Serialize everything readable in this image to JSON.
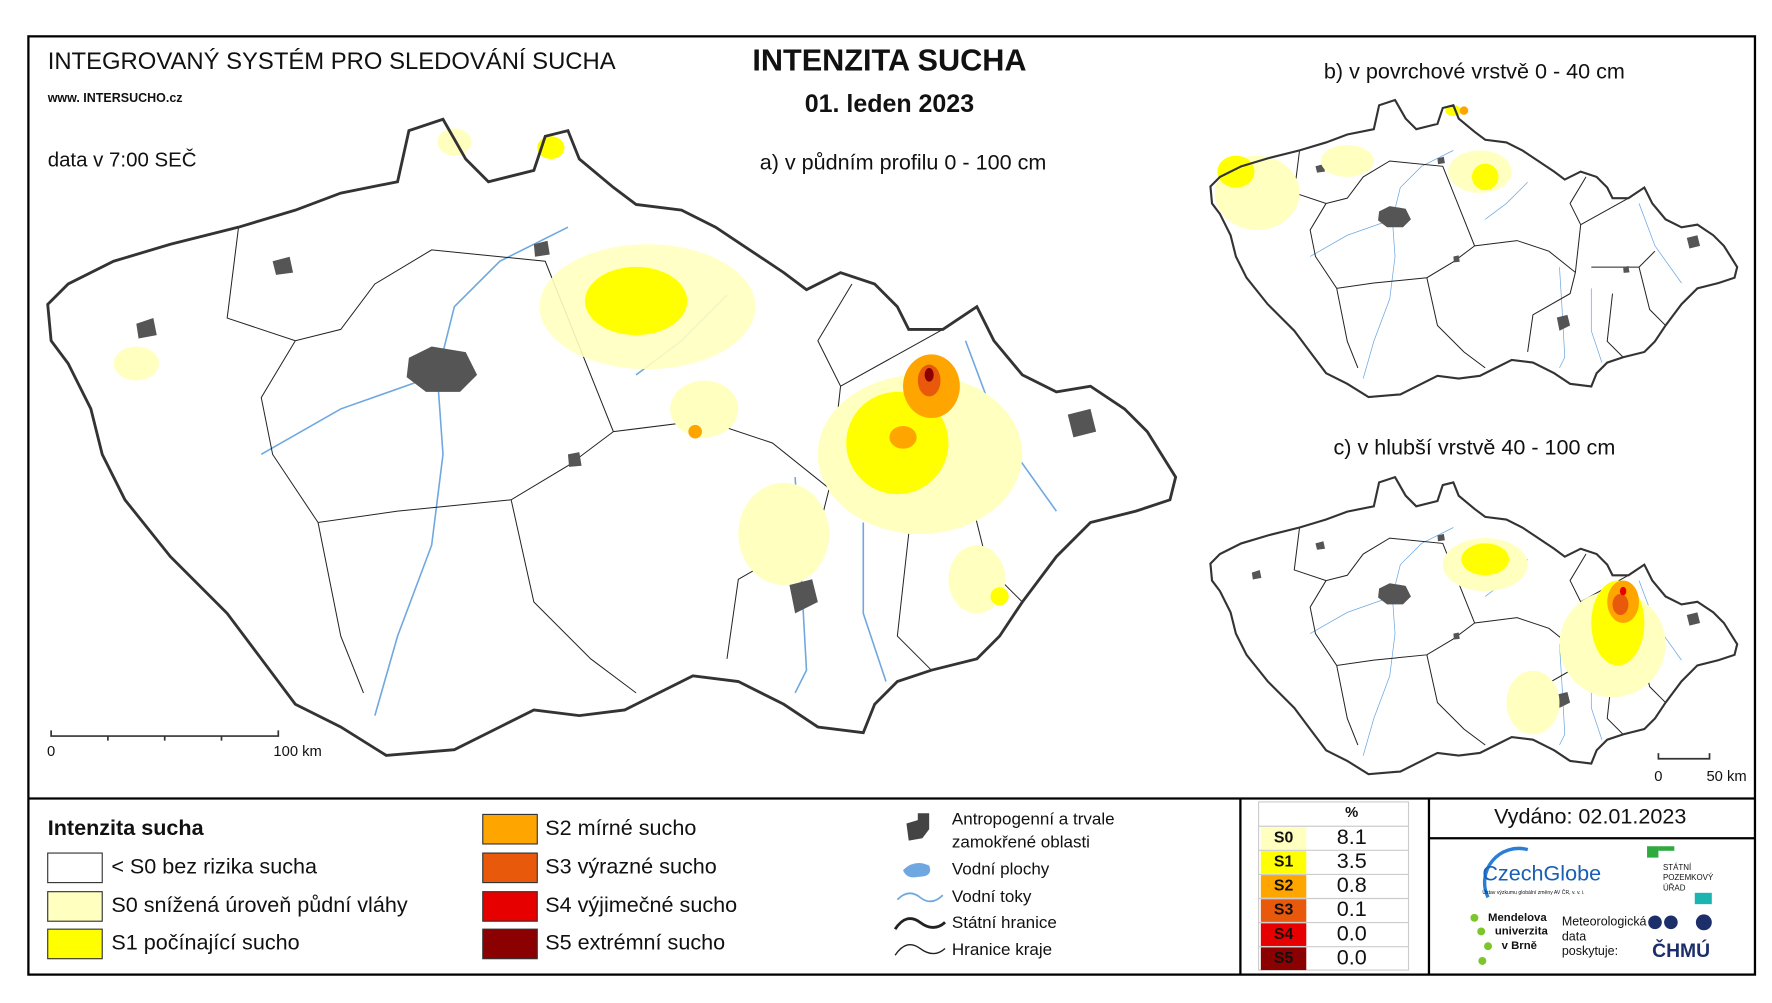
{
  "header": {
    "system": "INTEGROVANÝ SYSTÉM PRO SLEDOVÁNÍ SUCHA",
    "website": "www. INTERSUCHO.cz",
    "time": "data v 7:00 SEČ",
    "title": "INTENZITA SUCHA",
    "date": "01. leden 2023"
  },
  "maps": {
    "main": {
      "label": "a) v půdním profilu 0 - 100 cm",
      "scale": [
        "0",
        "100 km"
      ]
    },
    "surface": {
      "label": "b) v povrchové vrstvě 0 - 40 cm"
    },
    "deep": {
      "label": "c) v hlubší vrstvě 40 - 100 cm",
      "scale": [
        "0",
        "50 km"
      ]
    }
  },
  "legend": {
    "title": "Intenzita sucha",
    "classes": [
      {
        "label": "< S0 bez rizika sucha",
        "color": "#ffffff"
      },
      {
        "label": "S0 snížená úroveň půdní vláhy",
        "color": "#ffffc0"
      },
      {
        "label": "S1 počínající sucho",
        "color": "#ffff00"
      },
      {
        "label": "S2 mírné sucho",
        "color": "#ffa500"
      },
      {
        "label": "S3 výrazné sucho",
        "color": "#e8590c"
      },
      {
        "label": "S4 výjimečné sucho",
        "color": "#e60000"
      },
      {
        "label": "S5 extrémní sucho",
        "color": "#8b0000"
      }
    ]
  },
  "symbols": [
    {
      "lines": [
        "Antropogenní a trvale",
        "zamokřené oblasti"
      ]
    },
    {
      "lines": [
        "Vodní plochy"
      ]
    },
    {
      "lines": [
        "Vodní toky"
      ]
    },
    {
      "lines": [
        "Státní hranice"
      ]
    },
    {
      "lines": [
        "Hranice kraje"
      ]
    }
  ],
  "stats": {
    "header": "%",
    "rows": [
      {
        "class": "S0",
        "value": "8.1"
      },
      {
        "class": "S1",
        "value": "3.5"
      },
      {
        "class": "S2",
        "value": "0.8"
      },
      {
        "class": "S3",
        "value": "0.1"
      },
      {
        "class": "S4",
        "value": "0.0"
      },
      {
        "class": "S5",
        "value": "0.0"
      }
    ]
  },
  "issued": "Vydáno: 02.01.2023",
  "logos": {
    "czechglobe": "CzechGlobe",
    "czechglobe_sub": "Ústav výzkumu globální změny AV ČR, v. v. i.",
    "spu": [
      "STÁTNÍ",
      "POZEMKOVÝ",
      "ÚŘAD"
    ],
    "mendelu": [
      "Mendelova",
      "univerzita",
      "v Brně"
    ],
    "meteo": [
      "Meteorologická",
      "data",
      "poskytuje:"
    ],
    "chmu": "ČHMÚ"
  }
}
